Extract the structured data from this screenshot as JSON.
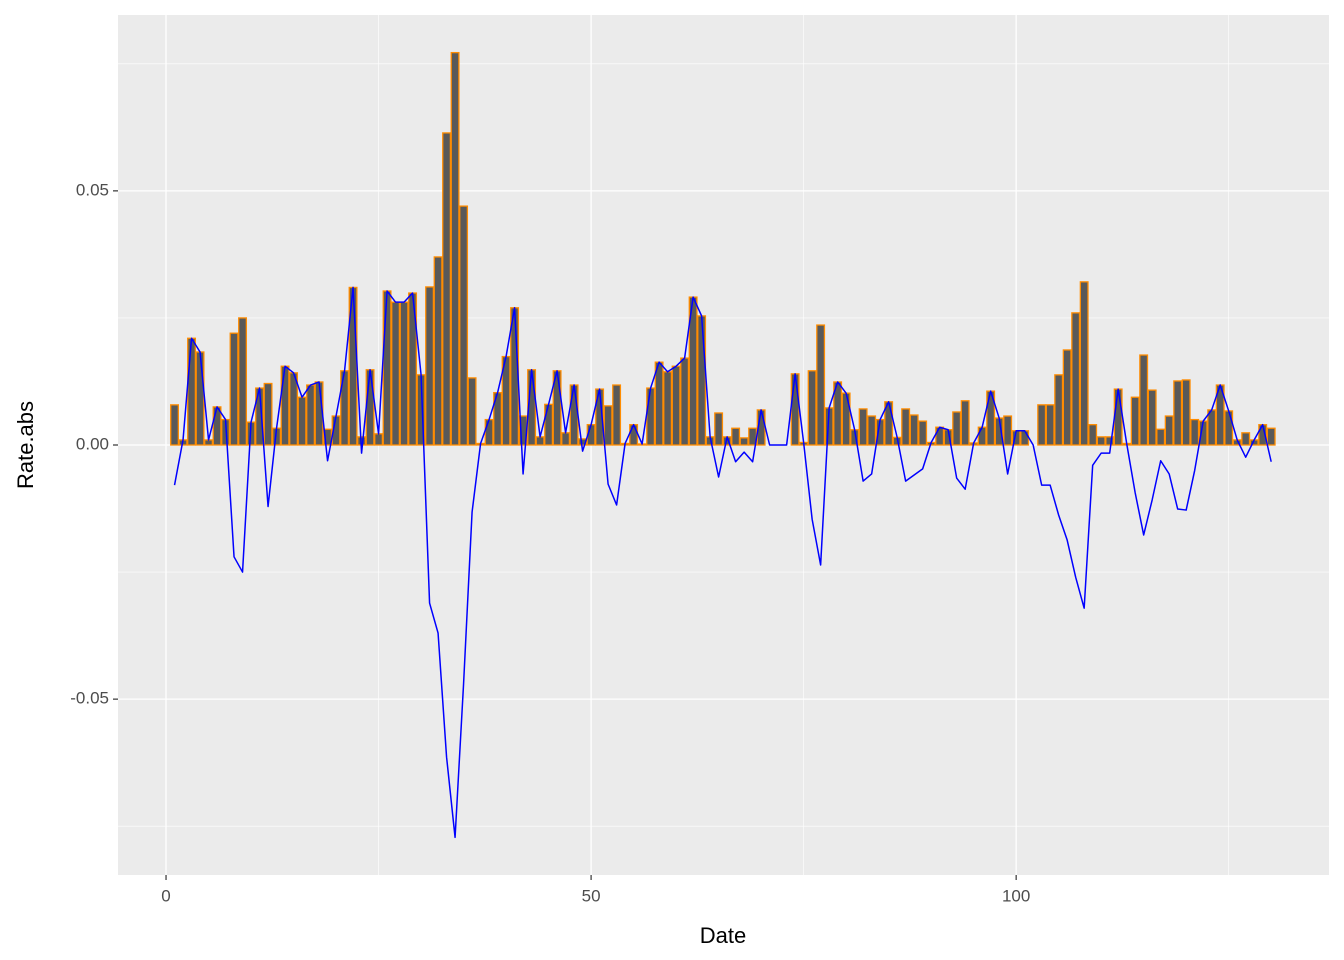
{
  "chart_data": {
    "type": "bar",
    "x_label": "Date",
    "y_label": "Rate.abs",
    "x": [
      1,
      2,
      3,
      4,
      5,
      6,
      7,
      8,
      9,
      10,
      11,
      12,
      13,
      14,
      15,
      16,
      17,
      18,
      19,
      20,
      21,
      22,
      23,
      24,
      25,
      26,
      27,
      28,
      29,
      30,
      31,
      32,
      33,
      34,
      35,
      36,
      37,
      38,
      39,
      40,
      41,
      42,
      43,
      44,
      45,
      46,
      47,
      48,
      49,
      50,
      51,
      52,
      53,
      54,
      55,
      56,
      57,
      58,
      59,
      60,
      61,
      62,
      63,
      64,
      65,
      66,
      67,
      68,
      69,
      70,
      71,
      72,
      73,
      74,
      75,
      76,
      77,
      78,
      79,
      80,
      81,
      82,
      83,
      84,
      85,
      86,
      87,
      88,
      89,
      90,
      91,
      92,
      93,
      94,
      95,
      96,
      97,
      98,
      99,
      100,
      101,
      102,
      103,
      104,
      105,
      106,
      107,
      108,
      109,
      110,
      111,
      112,
      113,
      114,
      115,
      116,
      117,
      118,
      119,
      120,
      121,
      122,
      123,
      124,
      125,
      126,
      127,
      128,
      129,
      130
    ],
    "series": [
      {
        "type": "bar",
        "color": "#595959",
        "edge_color": "#FF8C00",
        "values": [
          0.0079,
          0.001,
          0.021,
          0.0183,
          0.001,
          0.0075,
          0.005,
          0.022,
          0.025,
          0.0045,
          0.0112,
          0.0121,
          0.0033,
          0.0155,
          0.0142,
          0.0094,
          0.0118,
          0.0124,
          0.0031,
          0.0057,
          0.0146,
          0.031,
          0.0016,
          0.0148,
          0.0022,
          0.0303,
          0.0281,
          0.0281,
          0.0299,
          0.0138,
          0.0311,
          0.037,
          0.0614,
          0.0772,
          0.047,
          0.0132,
          0.0003,
          0.005,
          0.0103,
          0.0174,
          0.027,
          0.0057,
          0.0148,
          0.0016,
          0.008,
          0.0146,
          0.0024,
          0.0118,
          0.0012,
          0.004,
          0.011,
          0.0077,
          0.0118,
          0.0003,
          0.004,
          0.0002,
          0.0112,
          0.0163,
          0.0144,
          0.0155,
          0.0171,
          0.0291,
          0.0254,
          0.0016,
          0.0063,
          0.0016,
          0.0033,
          0.0014,
          0.0033,
          0.0069,
          0,
          0,
          0,
          0.014,
          0.0005,
          0.0146,
          0.0236,
          0.0073,
          0.0124,
          0.0102,
          0.003,
          0.0071,
          0.0057,
          0.005,
          0.0085,
          0.0015,
          0.0071,
          0.0059,
          0.0047,
          0.0005,
          0.0035,
          0.003,
          0.0065,
          0.0087,
          0.0004,
          0.0035,
          0.0106,
          0.0053,
          0.0057,
          0.0028,
          0.0028,
          0,
          0.0079,
          0.0079,
          0.0138,
          0.0187,
          0.026,
          0.0321,
          0.004,
          0.0016,
          0.0016,
          0.011,
          0.0003,
          0.0094,
          0.0177,
          0.0108,
          0.0031,
          0.0057,
          0.0126,
          0.0128,
          0.005,
          0.0047,
          0.0069,
          0.0118,
          0.0067,
          0.001,
          0.0024,
          0.001,
          0.004,
          0.0033
        ]
      },
      {
        "type": "line",
        "color": "#0000FF",
        "values": [
          -0.0079,
          0.001,
          0.021,
          0.0183,
          0.001,
          0.0075,
          0.005,
          -0.022,
          -0.025,
          0.0045,
          0.0112,
          -0.0121,
          0.0033,
          0.0155,
          0.0142,
          0.0094,
          0.0118,
          0.0124,
          -0.0031,
          0.0057,
          0.0146,
          0.031,
          -0.0016,
          0.0148,
          0.0022,
          0.0303,
          0.0281,
          0.0281,
          0.0299,
          0.0138,
          -0.0311,
          -0.037,
          -0.0614,
          -0.0772,
          -0.047,
          -0.0132,
          0.0003,
          0.005,
          0.0103,
          0.0174,
          0.027,
          -0.0057,
          0.0148,
          0.0016,
          0.008,
          0.0146,
          0.0024,
          0.0118,
          -0.0012,
          0.004,
          0.011,
          -0.0077,
          -0.0118,
          0.0003,
          0.004,
          0.0002,
          0.0112,
          0.0163,
          0.0144,
          0.0155,
          0.0171,
          0.0291,
          0.0254,
          0.0016,
          -0.0063,
          0.0016,
          -0.0033,
          -0.0014,
          -0.0033,
          0.0069,
          0,
          0,
          0,
          0.014,
          0.0005,
          -0.0146,
          -0.0236,
          0.0073,
          0.0124,
          0.0102,
          0.003,
          -0.0071,
          -0.0057,
          0.005,
          0.0085,
          0.0015,
          -0.0071,
          -0.0059,
          -0.0047,
          0.0005,
          0.0035,
          0.003,
          -0.0065,
          -0.0087,
          0.0004,
          0.0035,
          0.0106,
          0.0053,
          -0.0057,
          0.0028,
          0.0028,
          0,
          -0.0079,
          -0.0079,
          -0.0138,
          -0.0187,
          -0.026,
          -0.0321,
          -0.004,
          -0.0016,
          -0.0016,
          0.011,
          0.0003,
          -0.0094,
          -0.0177,
          -0.0108,
          -0.0031,
          -0.0057,
          -0.0126,
          -0.0128,
          -0.005,
          0.0047,
          0.0069,
          0.0118,
          0.0067,
          0.001,
          -0.0024,
          0.001,
          0.004,
          -0.0033
        ]
      }
    ],
    "xlim": [
      -5.65,
      136.8
    ],
    "ylim": [
      -0.0846,
      0.0846
    ],
    "xticks": [
      0,
      50,
      100
    ],
    "yticks": [
      -0.05,
      {
        "value": 0,
        "label": "0.00"
      },
      0.05
    ],
    "grid": true
  }
}
